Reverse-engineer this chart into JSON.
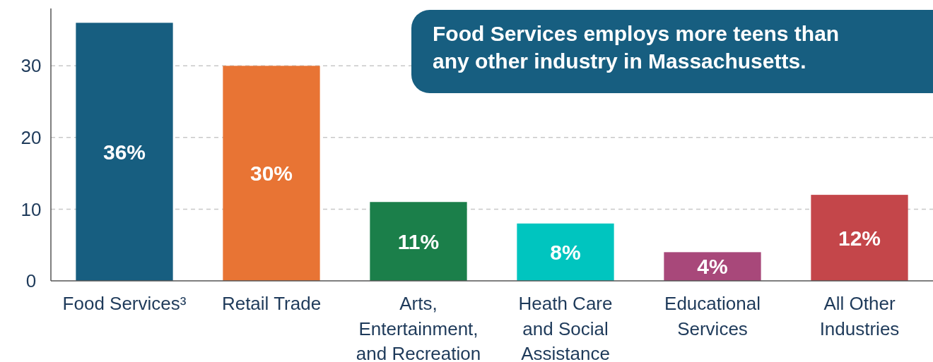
{
  "chart_data": {
    "type": "bar",
    "categories": [
      "Food Services³",
      "Retail Trade",
      "Arts, Entertainment, and Recreation",
      "Heath Care and Social Assistance",
      "Educational Services",
      "All Other Industries"
    ],
    "values": [
      36,
      30,
      11,
      8,
      4,
      12
    ],
    "colors": [
      "#175e80",
      "#e87434",
      "#1b7f4a",
      "#00c5bf",
      "#a8487a",
      "#c4464a"
    ],
    "value_labels": [
      "36%",
      "30%",
      "11%",
      "8%",
      "4%",
      "12%"
    ],
    "ylim": [
      0,
      38
    ],
    "yticks": [
      0,
      10,
      20,
      30
    ],
    "grid": "y",
    "annotations": [
      "Food Services employs more teens than any other industry in Massachusetts."
    ]
  }
}
